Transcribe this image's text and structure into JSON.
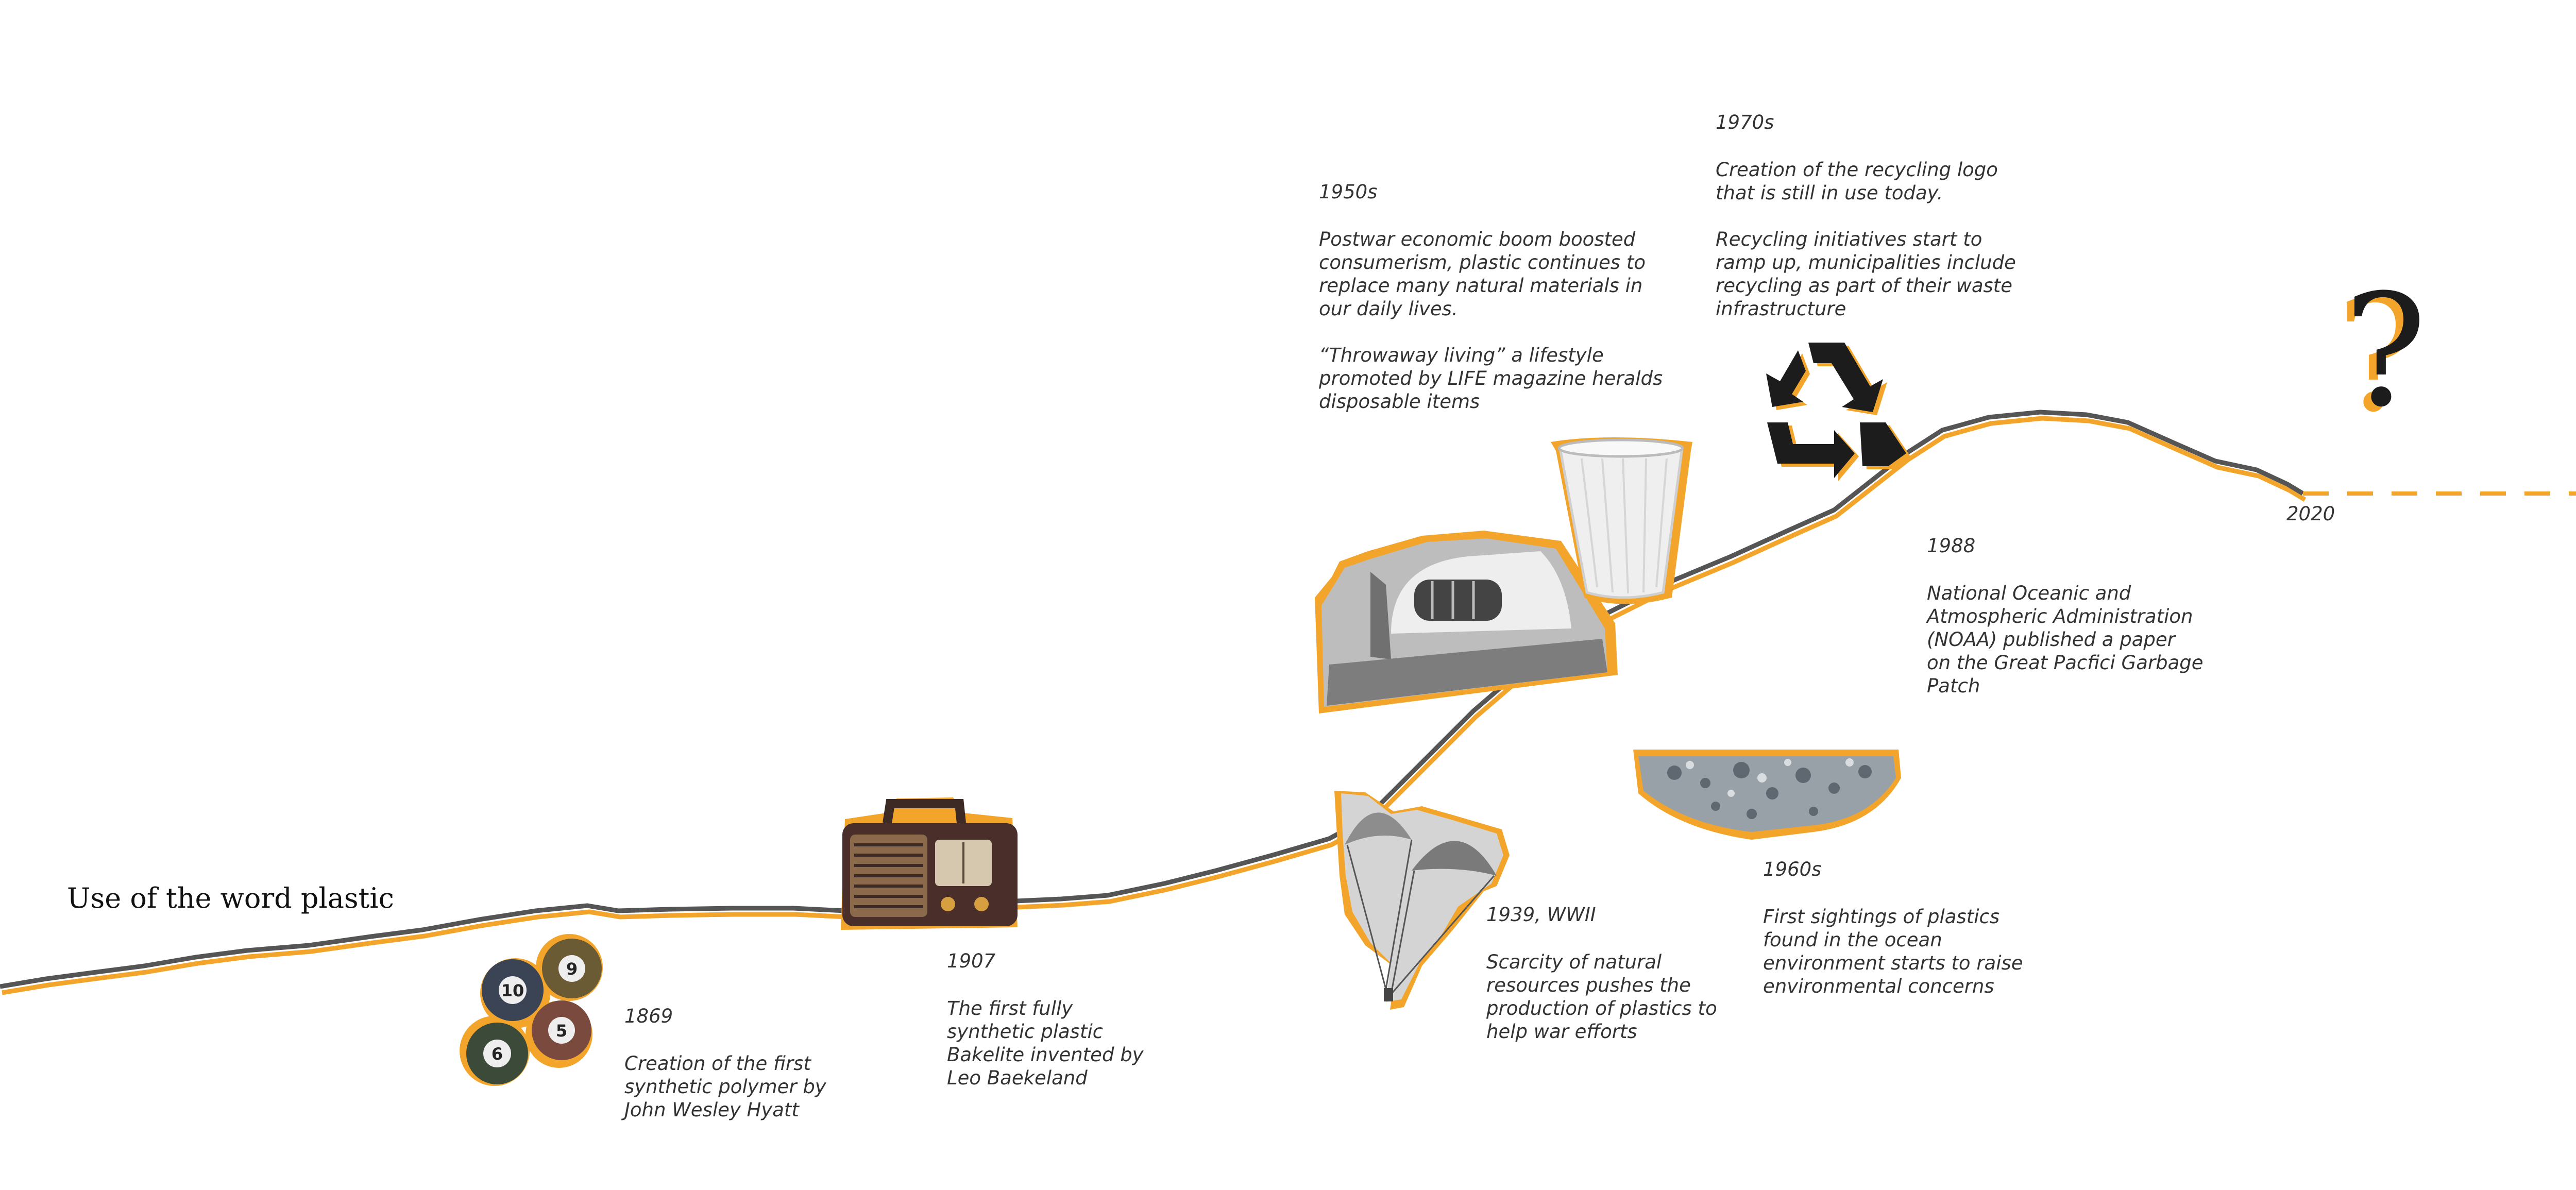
{
  "title": "Use of the word plastic",
  "question_mark": "?",
  "events": [
    {
      "key": "1869",
      "label": "1869",
      "lines": [
        "Creation of the first",
        "synthetic polymer by",
        "John Wesley Hyatt"
      ]
    },
    {
      "key": "1907",
      "label": "1907",
      "lines": [
        "The first fully",
        "synthetic plastic",
        "Bakelite invented by",
        "Leo Baekeland"
      ]
    },
    {
      "key": "1939",
      "label": "1939, WWII",
      "lines": [
        "Scarcity of natural",
        "resources pushes the",
        "production of plastics to",
        "help war efforts"
      ]
    },
    {
      "key": "1950s",
      "label": "1950s",
      "lines": [
        "Postwar economic boom boosted",
        "consumerism, plastic continues to",
        "replace many natural materials in",
        "our daily lives.",
        "",
        "“Throwaway living” a lifestyle",
        "promoted by LIFE magazine heralds",
        "disposable items"
      ]
    },
    {
      "key": "1960s",
      "label": "1960s",
      "lines": [
        "First sightings of plastics",
        "found in the ocean",
        "environment starts to raise",
        "environmental concerns"
      ]
    },
    {
      "key": "1970s",
      "label": "1970s",
      "lines": [
        "Creation of the recycling logo",
        "that is still in use today.",
        "",
        "Recycling initiatives start to",
        "ramp up, municipalities include",
        "recycling as part of their waste",
        "infrastructure"
      ]
    },
    {
      "key": "1988",
      "label": "1988",
      "lines": [
        "National Oceanic and",
        "Atmospheric Administration",
        "(NOAA) published a paper",
        "on the Great Pacfici Garbage",
        "Patch"
      ]
    },
    {
      "key": "2020",
      "label": "2020",
      "lines": []
    }
  ],
  "illustrations": {
    "billiard_numbers": [
      "10",
      "9",
      "5",
      "6"
    ]
  },
  "colors": {
    "accent": "#f2a52a",
    "line": "#555555",
    "text": "#333333"
  }
}
